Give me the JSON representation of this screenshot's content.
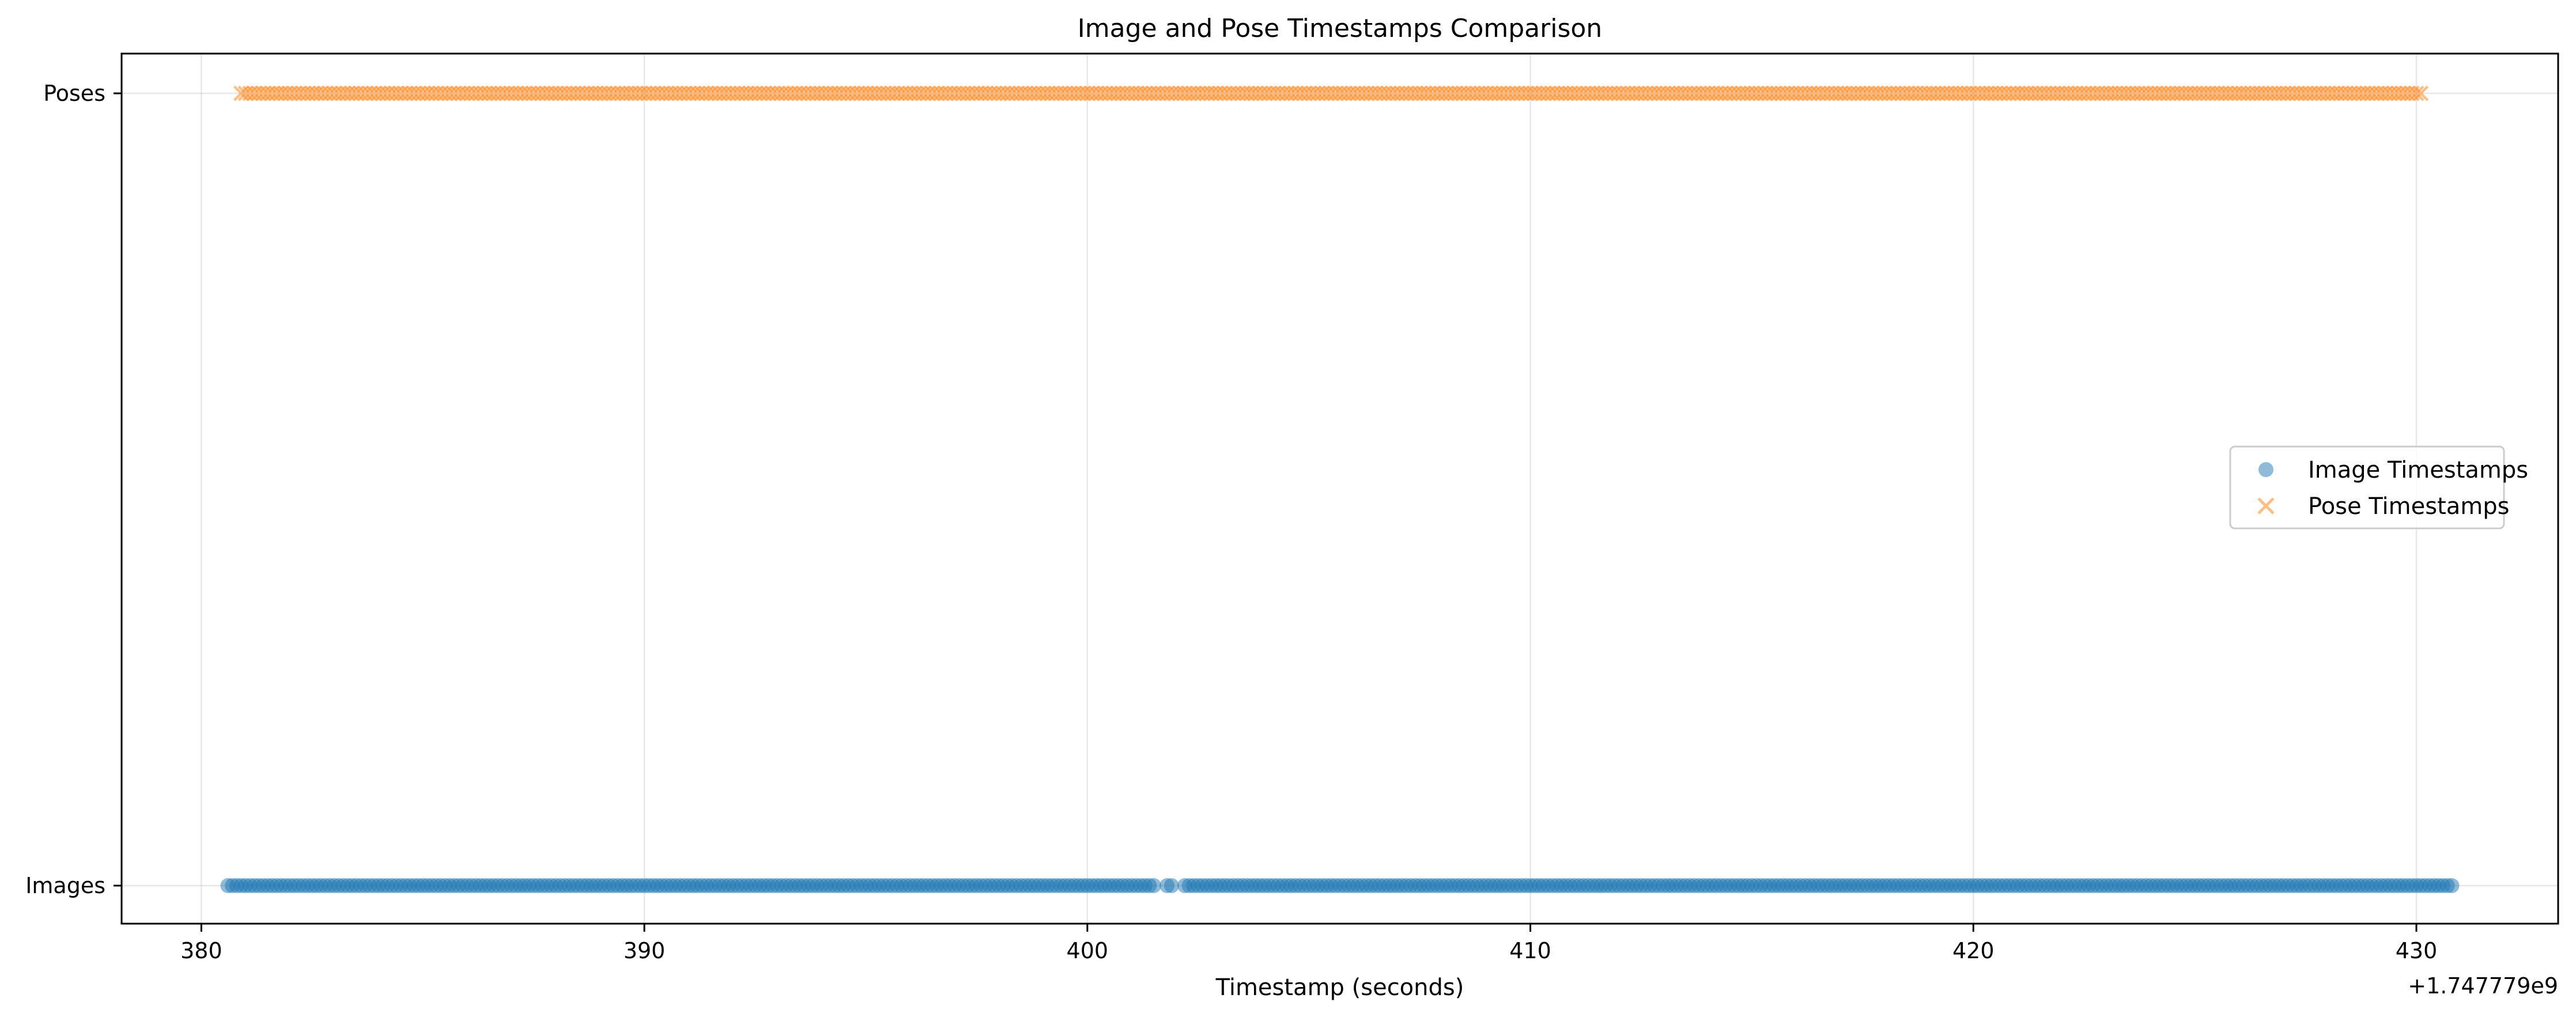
{
  "chart_data": {
    "type": "scatter",
    "title": "Image and Pose Timestamps Comparison",
    "xlabel": "Timestamp (seconds)",
    "ylabel": "",
    "x_offset_label": "+1.747779e9",
    "xlim": [
      378.2,
      433.2
    ],
    "xticks": [
      380,
      390,
      400,
      410,
      420,
      430
    ],
    "xtick_labels": [
      "380",
      "390",
      "400",
      "410",
      "420",
      "430"
    ],
    "yticks": [
      0,
      1
    ],
    "ytick_labels": [
      "Images",
      "Poses"
    ],
    "grid": true,
    "legend_position": "center-right",
    "series": [
      {
        "name": "Image Timestamps",
        "marker": "circle",
        "color": "#1f77b4",
        "y": 0,
        "x_start": 380.6,
        "x_end": 430.8,
        "interval": 0.1,
        "gaps": [
          [
            401.5,
            401.8
          ],
          [
            401.95,
            402.15
          ]
        ]
      },
      {
        "name": "Pose Timestamps",
        "marker": "x",
        "color": "#ff7f0e",
        "y": 1,
        "x_start": 380.9,
        "x_end": 430.1,
        "interval": 0.1,
        "gaps": []
      }
    ]
  }
}
